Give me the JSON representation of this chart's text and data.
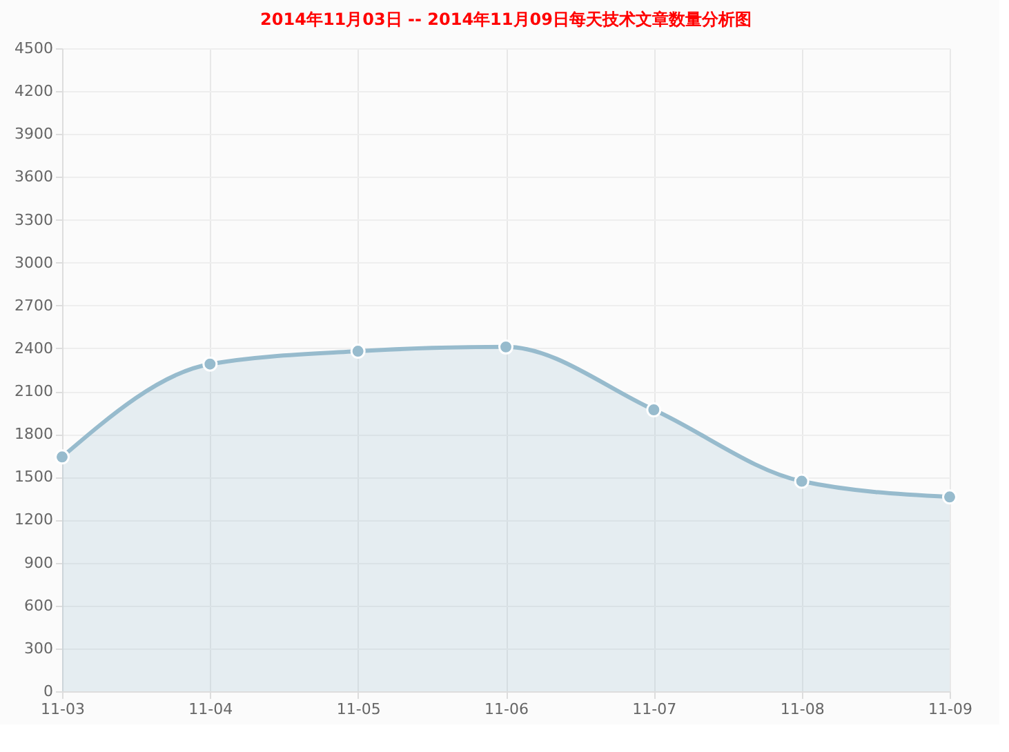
{
  "chart_data": {
    "type": "area",
    "title": "2014年11月03日 -- 2014年11月09日每天技术文章数量分析图",
    "categories": [
      "11-03",
      "11-04",
      "11-05",
      "11-06",
      "11-07",
      "11-08",
      "11-09"
    ],
    "series": [
      {
        "color": "#97bbcd",
        "values": [
          1640,
          2290,
          2380,
          2410,
          1970,
          1470,
          1360
        ]
      }
    ],
    "ylim": [
      0,
      4500
    ],
    "yticks": [
      0,
      300,
      600,
      900,
      1200,
      1500,
      1800,
      2100,
      2400,
      2700,
      3000,
      3300,
      3600,
      3900,
      4200,
      4500
    ],
    "grid": true,
    "marker": "circle",
    "line_style": "solid"
  }
}
